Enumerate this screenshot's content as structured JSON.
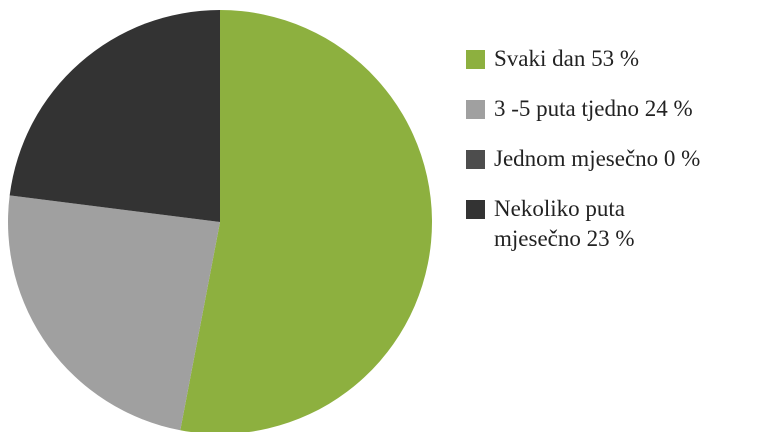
{
  "chart_data": {
    "type": "pie",
    "categories": [
      "Svaki dan",
      "3 -5 puta tjedno",
      "Jednom mjesečno",
      "Nekoliko puta mjesečno"
    ],
    "values": [
      53,
      24,
      0,
      23
    ],
    "value_labels": [
      "53 %",
      "24 %",
      "0 %",
      "23 %"
    ],
    "colors": [
      "#8db03f",
      "#a0a0a0",
      "#4d4d4d",
      "#333333"
    ],
    "legend": "right"
  }
}
